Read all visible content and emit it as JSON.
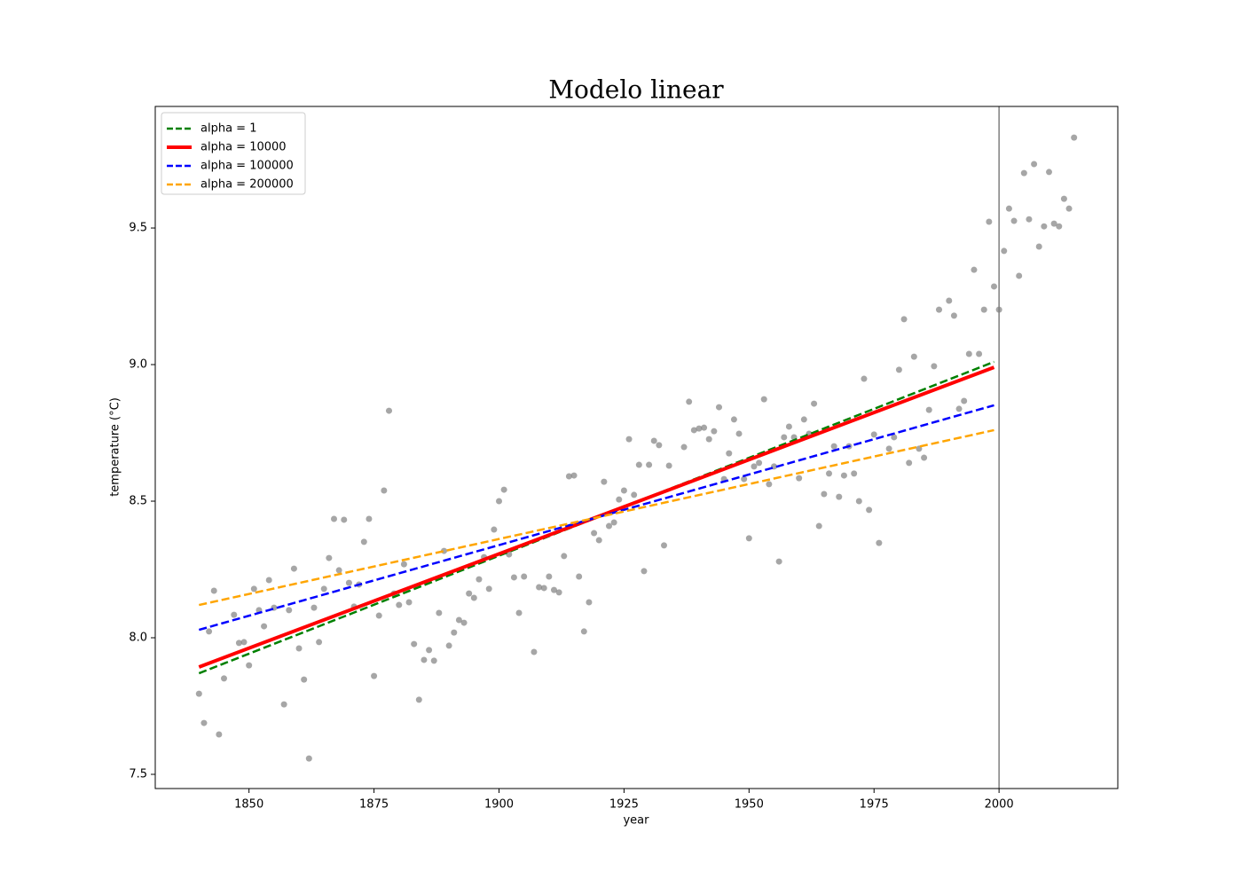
{
  "chart_data": {
    "type": "scatter",
    "title": "Modelo linear",
    "x_label": "year",
    "y_label": "temperature (°C)",
    "xlim": [
      1831.25,
      2023.75
    ],
    "ylim": [
      7.448,
      9.945
    ],
    "xticks": [
      1850,
      1875,
      1900,
      1925,
      1950,
      1975,
      2000
    ],
    "yticks": [
      7.5,
      {
        "value": 8,
        "label": "8.0"
      },
      8.5,
      {
        "value": 9,
        "label": "9.0"
      },
      9.5
    ],
    "vline": 2000,
    "vline_color": "#808080",
    "legend": "upper left",
    "series": [
      {
        "type": "scatter",
        "color": "#808080",
        "x": [
          1840,
          1841,
          1842,
          1843,
          1844,
          1845,
          1847,
          1848,
          1849,
          1850,
          1851,
          1852,
          1853,
          1854,
          1855,
          1857,
          1858,
          1859,
          1860,
          1861,
          1862,
          1863,
          1864,
          1865,
          1866,
          1867,
          1868,
          1869,
          1870,
          1871,
          1872,
          1873,
          1874,
          1875,
          1876,
          1877,
          1878,
          1879,
          1880,
          1881,
          1882,
          1883,
          1884,
          1885,
          1886,
          1887,
          1888,
          1889,
          1890,
          1891,
          1892,
          1893,
          1894,
          1895,
          1896,
          1897,
          1898,
          1899,
          1900,
          1901,
          1902,
          1903,
          1904,
          1905,
          1907,
          1908,
          1909,
          1910,
          1911,
          1912,
          1913,
          1914,
          1915,
          1916,
          1917,
          1918,
          1919,
          1920,
          1921,
          1922,
          1923,
          1924,
          1925,
          1926,
          1927,
          1928,
          1929,
          1930,
          1931,
          1932,
          1933,
          1934,
          1937,
          1938,
          1939,
          1940,
          1941,
          1942,
          1943,
          1944,
          1945,
          1946,
          1947,
          1948,
          1949,
          1950,
          1951,
          1952,
          1953,
          1954,
          1955,
          1956,
          1957,
          1958,
          1959,
          1960,
          1961,
          1962,
          1963,
          1964,
          1965,
          1966,
          1967,
          1968,
          1969,
          1970,
          1971,
          1972,
          1973,
          1974,
          1975,
          1976,
          1978,
          1979,
          1980,
          1981,
          1982,
          1983,
          1984,
          1985,
          1986,
          1987,
          1988,
          1990,
          1991,
          1992,
          1993,
          1994,
          1995,
          1996,
          1997,
          1998,
          1999,
          2000,
          2001,
          2002,
          2003,
          2004,
          2005,
          2006,
          2007,
          2008,
          2009,
          2010,
          2011,
          2012,
          2013,
          2014,
          2015
        ],
        "values": [
          7.795,
          7.688,
          8.023,
          8.172,
          7.646,
          7.851,
          8.084,
          7.981,
          7.984,
          7.899,
          8.179,
          8.101,
          8.042,
          8.211,
          8.11,
          7.756,
          8.101,
          8.253,
          7.961,
          7.847,
          7.558,
          8.11,
          7.984,
          8.179,
          8.292,
          8.435,
          8.247,
          8.432,
          8.201,
          8.114,
          8.195,
          8.351,
          8.435,
          7.86,
          8.081,
          8.539,
          8.831,
          8.162,
          8.12,
          8.269,
          8.13,
          7.977,
          7.773,
          7.919,
          7.955,
          7.916,
          8.091,
          8.318,
          7.971,
          8.019,
          8.065,
          8.055,
          8.162,
          8.146,
          8.214,
          8.295,
          8.179,
          8.396,
          8.5,
          8.542,
          8.305,
          8.221,
          8.091,
          8.224,
          7.948,
          8.185,
          8.182,
          8.224,
          8.175,
          8.166,
          8.299,
          8.591,
          8.594,
          8.224,
          8.023,
          8.13,
          8.383,
          8.357,
          8.571,
          8.409,
          8.422,
          8.506,
          8.539,
          8.727,
          8.523,
          8.633,
          8.244,
          8.633,
          8.721,
          8.705,
          8.338,
          8.63,
          8.698,
          8.864,
          8.76,
          8.766,
          8.769,
          8.727,
          8.756,
          8.844,
          8.581,
          8.675,
          8.799,
          8.747,
          8.581,
          8.364,
          8.627,
          8.64,
          8.873,
          8.562,
          8.627,
          8.279,
          8.734,
          8.773,
          8.734,
          8.584,
          8.799,
          8.747,
          8.857,
          8.409,
          8.526,
          8.601,
          8.701,
          8.516,
          8.594,
          8.701,
          8.601,
          8.5,
          8.948,
          8.468,
          8.744,
          8.347,
          8.692,
          8.734,
          8.981,
          9.166,
          8.64,
          9.029,
          8.692,
          8.659,
          8.834,
          8.994,
          9.201,
          9.234,
          9.179,
          8.838,
          8.867,
          9.039,
          9.347,
          9.039,
          9.201,
          9.523,
          9.286,
          9.201,
          9.416,
          9.571,
          9.526,
          9.325,
          9.701,
          9.532,
          9.734,
          9.432,
          9.506,
          9.705,
          9.516,
          9.506,
          9.607,
          9.571,
          9.831
        ]
      },
      {
        "type": "line",
        "name": "alpha = 1",
        "color": "green",
        "dashed": true,
        "linewidth": 2.5,
        "x": [
          1840,
          1999
        ],
        "values": [
          7.87,
          9.01
        ]
      },
      {
        "type": "line",
        "name": "alpha = 10000",
        "color": "red",
        "dashed": false,
        "linewidth": 4,
        "x": [
          1840,
          1999
        ],
        "values": [
          7.893,
          8.99
        ]
      },
      {
        "type": "line",
        "name": "alpha = 100000",
        "color": "blue",
        "dashed": true,
        "linewidth": 2.5,
        "x": [
          1840,
          1999
        ],
        "values": [
          8.029,
          8.851
        ]
      },
      {
        "type": "line",
        "name": "alpha = 200000",
        "color": "orange",
        "dashed": true,
        "linewidth": 2.5,
        "x": [
          1840,
          1999
        ],
        "values": [
          8.12,
          8.76
        ]
      }
    ]
  }
}
